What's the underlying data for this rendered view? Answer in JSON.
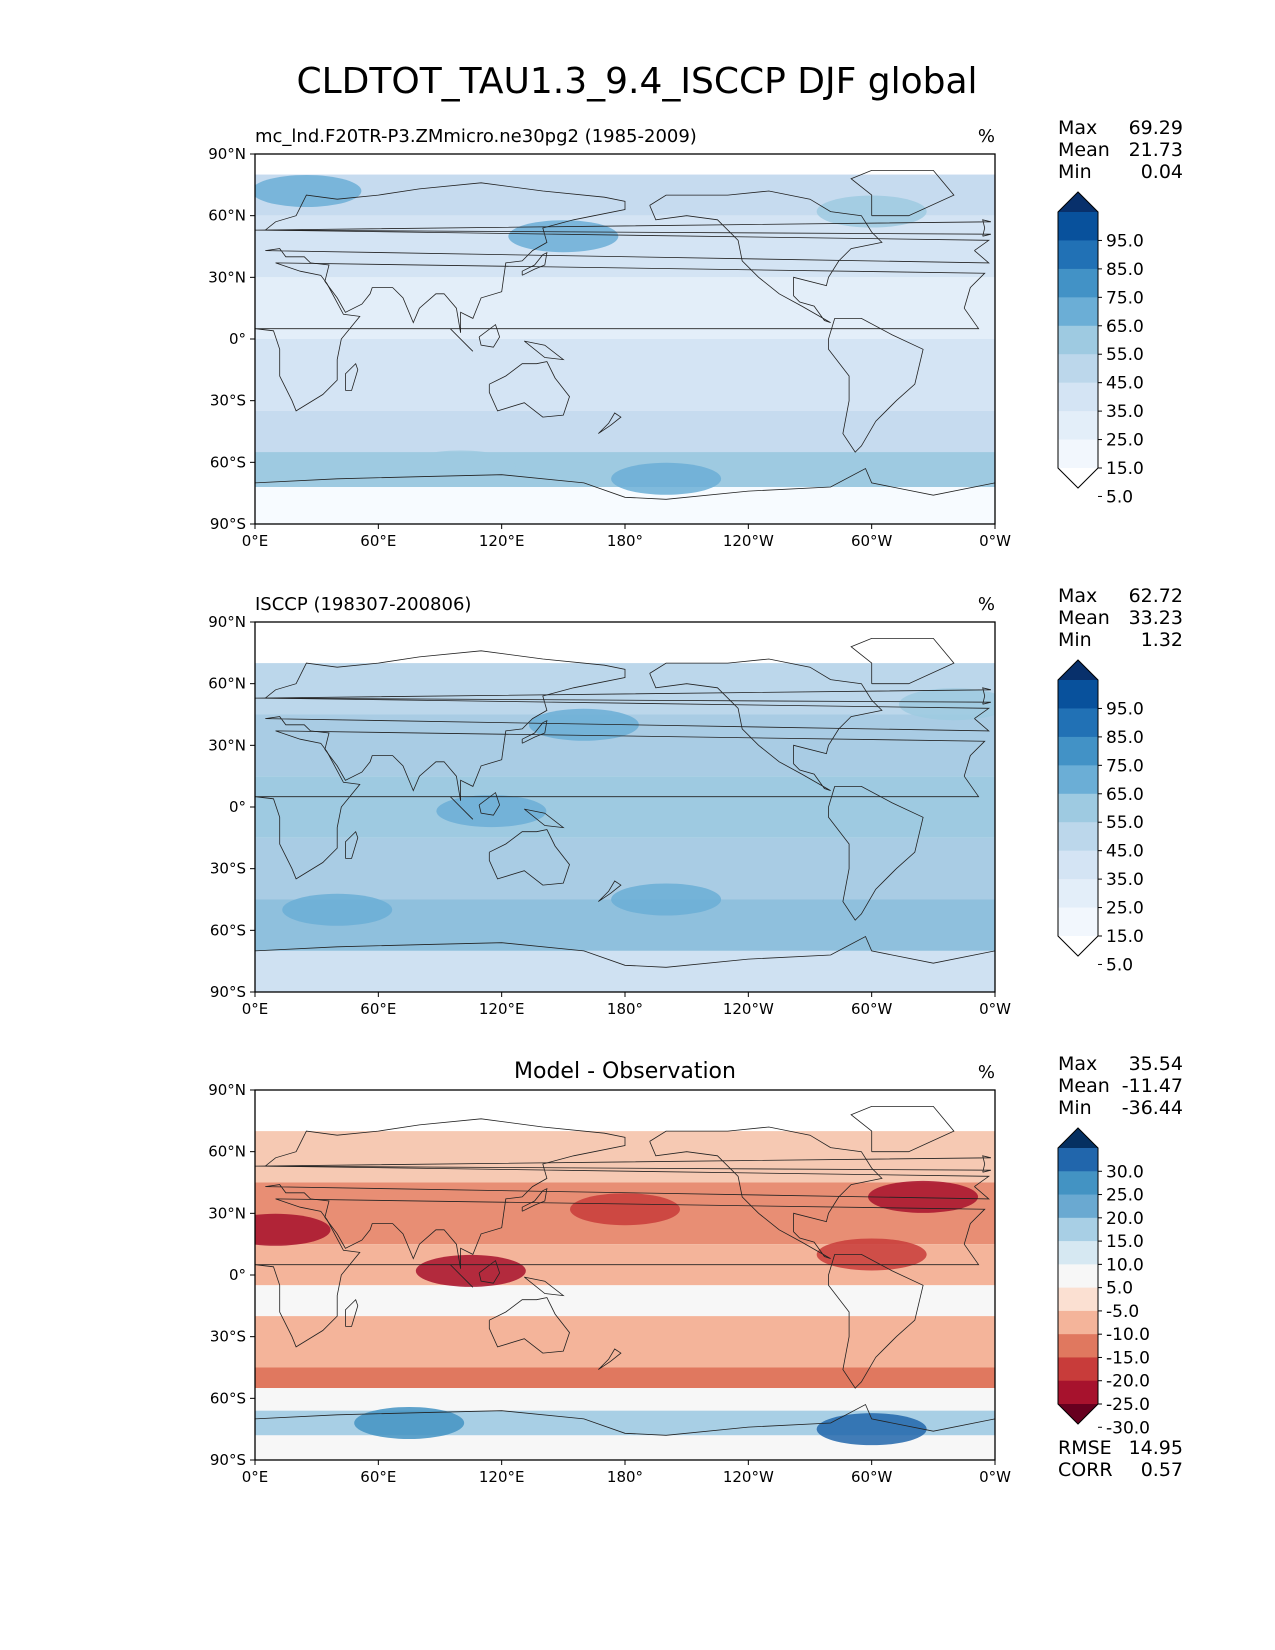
{
  "figure": {
    "title": "CLDTOT_TAU1.3_9.4_ISCCP DJF global"
  },
  "axes": {
    "x_ticks": [
      "0°E",
      "60°E",
      "120°E",
      "180°",
      "120°W",
      "60°W",
      "0°W"
    ],
    "y_ticks": [
      "90°N",
      "60°N",
      "30°N",
      "0°",
      "30°S",
      "60°S",
      "90°S"
    ]
  },
  "panels": [
    {
      "id": "test",
      "title_left": "mc_lnd.F20TR-P3.ZMmicro.ne30pg2 (1985-2009)",
      "title_center": "",
      "units": "%",
      "stats": [
        {
          "label": "Max",
          "value": "69.29"
        },
        {
          "label": "Mean",
          "value": "21.73"
        },
        {
          "label": "Min",
          "value": "0.04"
        }
      ],
      "colorbar_labels": [
        "95.0",
        "85.0",
        "75.0",
        "65.0",
        "55.0",
        "45.0",
        "35.0",
        "25.0",
        "15.0",
        "5.0"
      ],
      "colorbar_colors": [
        "#08306b",
        "#08519c",
        "#2171b5",
        "#4292c6",
        "#6baed6",
        "#9ecae1",
        "#bcd7eb",
        "#d4e4f4",
        "#e3eef9",
        "#f2f7fd",
        "#ffffff"
      ],
      "colormap": "Blues"
    },
    {
      "id": "reference",
      "title_left": "ISCCP (198307-200806)",
      "title_center": "",
      "units": "%",
      "stats": [
        {
          "label": "Max",
          "value": "62.72"
        },
        {
          "label": "Mean",
          "value": "33.23"
        },
        {
          "label": "Min",
          "value": "1.32"
        }
      ],
      "colorbar_labels": [
        "95.0",
        "85.0",
        "75.0",
        "65.0",
        "55.0",
        "45.0",
        "35.0",
        "25.0",
        "15.0",
        "5.0"
      ],
      "colorbar_colors": [
        "#08306b",
        "#08519c",
        "#2171b5",
        "#4292c6",
        "#6baed6",
        "#9ecae1",
        "#bcd7eb",
        "#d4e4f4",
        "#e3eef9",
        "#f2f7fd",
        "#ffffff"
      ],
      "colormap": "Blues"
    },
    {
      "id": "difference",
      "title_left": "",
      "title_center": "Model - Observation",
      "units": "%",
      "stats": [
        {
          "label": "Max",
          "value": "35.54"
        },
        {
          "label": "Mean",
          "value": "-11.47"
        },
        {
          "label": "Min",
          "value": "-36.44"
        }
      ],
      "colorbar_labels": [
        "30.0",
        "25.0",
        "20.0",
        "15.0",
        "10.0",
        "5.0",
        "-5.0",
        "-10.0",
        "-15.0",
        "-20.0",
        "-25.0",
        "-30.0"
      ],
      "colorbar_colors": [
        "#053061",
        "#2166ac",
        "#4393c3",
        "#6aa9d1",
        "#a8cfe5",
        "#d6e8f2",
        "#f7f7f7",
        "#fbe0d2",
        "#f4b49a",
        "#e0785f",
        "#c83c3a",
        "#a7122d",
        "#67001f"
      ],
      "colormap": "RdBu_r",
      "metrics": [
        {
          "label": "RMSE",
          "value": "14.95"
        },
        {
          "label": "CORR",
          "value": "0.57"
        }
      ]
    }
  ]
}
